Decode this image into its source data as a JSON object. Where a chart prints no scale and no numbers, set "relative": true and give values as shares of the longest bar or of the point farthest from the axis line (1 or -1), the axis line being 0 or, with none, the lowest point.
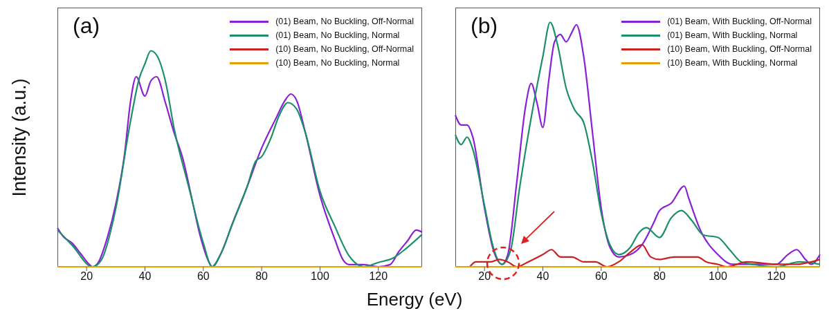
{
  "chart_data": [
    {
      "type": "line",
      "title": "(a)",
      "xlabel": "Energy (eV)",
      "ylabel": "Intensity (a.u.)",
      "relative": true,
      "xlim": [
        10,
        135
      ],
      "xticks": [
        20,
        40,
        60,
        80,
        100,
        120
      ],
      "legend": "top right",
      "series": [
        {
          "name": "(01) Beam, No Buckling, Off-Normal",
          "color": "#8a1fd6",
          "x": [
            10,
            12,
            15,
            18,
            21,
            22,
            24,
            27,
            30,
            33,
            35,
            37,
            40,
            42,
            44,
            47,
            50,
            53,
            56,
            59,
            62,
            63,
            66,
            70,
            75,
            80,
            85,
            88,
            90,
            92,
            95,
            100,
            105,
            108,
            110,
            115,
            120,
            124,
            127,
            130,
            133,
            135
          ],
          "values": [
            0.18,
            0.14,
            0.11,
            0.06,
            0.01,
            0,
            0.02,
            0.13,
            0.29,
            0.52,
            0.76,
            0.88,
            0.79,
            0.86,
            0.88,
            0.76,
            0.62,
            0.5,
            0.32,
            0.14,
            0.02,
            0,
            0.06,
            0.2,
            0.37,
            0.55,
            0.69,
            0.77,
            0.8,
            0.77,
            0.62,
            0.33,
            0.13,
            0.03,
            0.01,
            0.01,
            0,
            0.01,
            0.07,
            0.12,
            0.17,
            0.16
          ]
        },
        {
          "name": "(01) Beam, No Buckling, Normal",
          "color": "#1a8f6a",
          "x": [
            10,
            15,
            22,
            25,
            30,
            35,
            38,
            40,
            42,
            44,
            47,
            50,
            55,
            60,
            63,
            66,
            70,
            75,
            78,
            80,
            83,
            86,
            89,
            92,
            95,
            100,
            105,
            110,
            115,
            120,
            125,
            130,
            135
          ],
          "values": [
            0.17,
            0.1,
            0,
            0.03,
            0.27,
            0.67,
            0.87,
            0.94,
            1,
            0.98,
            0.86,
            0.64,
            0.37,
            0.11,
            0,
            0.06,
            0.2,
            0.37,
            0.49,
            0.51,
            0.59,
            0.7,
            0.76,
            0.73,
            0.62,
            0.35,
            0.19,
            0.05,
            0,
            0.02,
            0.04,
            0.09,
            0.15
          ]
        },
        {
          "name": "(10) Beam, No Buckling, Off-Normal",
          "color": "#cc1f1f"
        },
        {
          "name": "(10) Beam, No Buckling, Normal",
          "color": "#e69f00",
          "x": [
            10,
            135
          ],
          "values": [
            0,
            0
          ]
        }
      ]
    },
    {
      "type": "line",
      "title": "(b)",
      "relative": true,
      "xlim": [
        10,
        135
      ],
      "xticks": [
        20,
        40,
        60,
        80,
        100,
        120
      ],
      "legend": "top right",
      "series": [
        {
          "name": "(01) Beam, With Buckling, Off-Normal",
          "color": "#8a1fd6",
          "x": [
            10,
            12,
            14,
            16,
            20,
            23,
            26,
            28,
            31,
            34,
            36,
            38,
            40,
            42,
            44,
            46,
            48,
            50,
            51.5,
            54,
            57,
            60,
            63,
            66,
            70,
            74,
            78,
            80,
            84,
            88.5,
            90,
            94,
            100,
            105,
            110,
            120,
            124,
            127,
            130,
            132,
            135
          ],
          "values": [
            0.62,
            0.58,
            0.58,
            0.53,
            0.24,
            0.07,
            0.01,
            0.05,
            0.34,
            0.65,
            0.75,
            0.67,
            0.57,
            0.76,
            0.92,
            0.95,
            0.92,
            0.96,
            0.99,
            0.86,
            0.55,
            0.24,
            0.08,
            0.04,
            0.05,
            0.09,
            0.18,
            0.23,
            0.26,
            0.33,
            0.28,
            0.15,
            0.05,
            0.01,
            0.01,
            0.01,
            0.05,
            0.07,
            0.03,
            0.01,
            0.05
          ]
        },
        {
          "name": "(01) Beam, With Buckling, Normal",
          "color": "#1a8f6a",
          "x": [
            10,
            12,
            14,
            16,
            20,
            23,
            26,
            29,
            32,
            36,
            40,
            42.5,
            45,
            48,
            51,
            54,
            57,
            60,
            63,
            66,
            70,
            73,
            75.5,
            80,
            84,
            87.5,
            91,
            95,
            100,
            104,
            108,
            112,
            120,
            128,
            135
          ],
          "values": [
            0.54,
            0.5,
            0.53,
            0.48,
            0.25,
            0.08,
            0.01,
            0.07,
            0.32,
            0.61,
            0.86,
            1,
            0.91,
            0.73,
            0.64,
            0.59,
            0.43,
            0.22,
            0.09,
            0.05,
            0.08,
            0.14,
            0.16,
            0.12,
            0.2,
            0.23,
            0.19,
            0.13,
            0.12,
            0.07,
            0.02,
            0.01,
            0,
            0.02,
            0.01
          ]
        },
        {
          "name": "(10) Beam, With Buckling, Off-Normal",
          "color": "#cc1f1f",
          "x": [
            15,
            17,
            22,
            25,
            28,
            31,
            35,
            40,
            43,
            46,
            50,
            54,
            58,
            62,
            66,
            70,
            74,
            77,
            80,
            85,
            89,
            93,
            96,
            100,
            103,
            110,
            120,
            127,
            132,
            135
          ],
          "values": [
            0,
            0.02,
            0.02,
            0.03,
            0.02,
            0,
            0.02,
            0.05,
            0.07,
            0.04,
            0.04,
            0.02,
            0.02,
            0,
            0.02,
            0.06,
            0.09,
            0.04,
            0.03,
            0.04,
            0.04,
            0.04,
            0.02,
            0.01,
            0,
            0.02,
            0.01,
            0.01,
            0.02,
            0.03
          ]
        },
        {
          "name": "(10) Beam, With Buckling, Normal",
          "color": "#e69f00",
          "x": [
            10,
            135
          ],
          "values": [
            0,
            0
          ]
        }
      ]
    }
  ]
}
